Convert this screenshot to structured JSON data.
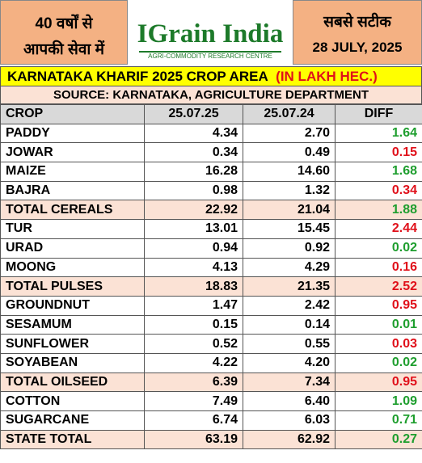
{
  "header": {
    "left_line1": "40 वर्षों से",
    "left_line2": "आपकी सेवा में",
    "logo_title": "IGrain India",
    "logo_subtitle": "AGRI-COMMODITY RESEARCH CENTRE",
    "right_line1": "सबसे सटीक",
    "date": "28 JULY, 2025"
  },
  "table": {
    "title": "KARNATAKA KHARIF 2025 CROP AREA",
    "unit": "(IN LAKH HEC.)",
    "source": "SOURCE: KARNATAKA, AGRICULTURE DEPARTMENT",
    "columns": [
      "CROP",
      "25.07.25",
      "25.07.24",
      "DIFF"
    ],
    "rows": [
      {
        "cells": [
          "PADDY",
          "4.34",
          "2.70",
          "1.64"
        ],
        "diff_color": "#1e9e2e",
        "highlight": false
      },
      {
        "cells": [
          "JOWAR",
          "0.34",
          "0.49",
          "0.15"
        ],
        "diff_color": "#e0101a",
        "highlight": false
      },
      {
        "cells": [
          "MAIZE",
          "16.28",
          "14.60",
          "1.68"
        ],
        "diff_color": "#1e9e2e",
        "highlight": false
      },
      {
        "cells": [
          "BAJRA",
          "0.98",
          "1.32",
          "0.34"
        ],
        "diff_color": "#e0101a",
        "highlight": false
      },
      {
        "cells": [
          "TOTAL CEREALS",
          "22.92",
          "21.04",
          "1.88"
        ],
        "diff_color": "#1e9e2e",
        "highlight": true
      },
      {
        "cells": [
          "TUR",
          "13.01",
          "15.45",
          "2.44"
        ],
        "diff_color": "#e0101a",
        "highlight": false
      },
      {
        "cells": [
          "URAD",
          "0.94",
          "0.92",
          "0.02"
        ],
        "diff_color": "#1e9e2e",
        "highlight": false
      },
      {
        "cells": [
          "MOONG",
          "4.13",
          "4.29",
          "0.16"
        ],
        "diff_color": "#e0101a",
        "highlight": false
      },
      {
        "cells": [
          "TOTAL PULSES",
          "18.83",
          "21.35",
          "2.52"
        ],
        "diff_color": "#e0101a",
        "highlight": true
      },
      {
        "cells": [
          "GROUNDNUT",
          "1.47",
          "2.42",
          "0.95"
        ],
        "diff_color": "#e0101a",
        "highlight": false
      },
      {
        "cells": [
          "SESAMUM",
          "0.15",
          "0.14",
          "0.01"
        ],
        "diff_color": "#1e9e2e",
        "highlight": false
      },
      {
        "cells": [
          "SUNFLOWER",
          "0.52",
          "0.55",
          "0.03"
        ],
        "diff_color": "#e0101a",
        "highlight": false
      },
      {
        "cells": [
          "SOYABEAN",
          "4.22",
          "4.20",
          "0.02"
        ],
        "diff_color": "#1e9e2e",
        "highlight": false
      },
      {
        "cells": [
          "TOTAL OILSEED",
          "6.39",
          "7.34",
          "0.95"
        ],
        "diff_color": "#e0101a",
        "highlight": true
      },
      {
        "cells": [
          "COTTON",
          "7.49",
          "6.40",
          "1.09"
        ],
        "diff_color": "#1e9e2e",
        "highlight": false
      },
      {
        "cells": [
          "SUGARCANE",
          "6.74",
          "6.03",
          "0.71"
        ],
        "diff_color": "#1e9e2e",
        "highlight": false
      },
      {
        "cells": [
          "STATE TOTAL",
          "63.19",
          "62.92",
          "0.27"
        ],
        "diff_color": "#1e9e2e",
        "highlight": true
      }
    ]
  }
}
